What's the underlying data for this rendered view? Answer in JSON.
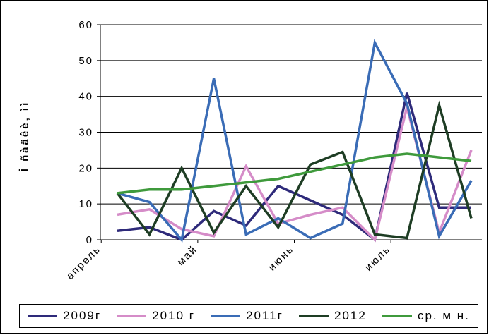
{
  "chart_data": {
    "type": "line",
    "ylabel": "Î ñàäêè, ìì",
    "xlabel": "",
    "ylim": [
      0,
      60
    ],
    "yticks": [
      0,
      10,
      20,
      30,
      40,
      50,
      60
    ],
    "x_tick_labels": [
      {
        "label": "апрель",
        "index": -0.5
      },
      {
        "label": "май",
        "index": 2.5
      },
      {
        "label": "июнь",
        "index": 5.5
      },
      {
        "label": "июль",
        "index": 8.5
      }
    ],
    "grid": "horizontal",
    "legend_position": "bottom",
    "series": [
      {
        "name": "2009г",
        "color": "#2e2a7a",
        "values": [
          2.5,
          3.5,
          0,
          8,
          4,
          15,
          11,
          7,
          0,
          41,
          9,
          9
        ]
      },
      {
        "name": "2010 г",
        "color": "#d58cc8",
        "values": [
          7,
          8.5,
          3,
          1,
          20.5,
          4.5,
          7,
          9,
          0,
          37,
          2,
          25
        ]
      },
      {
        "name": "2011г",
        "color": "#3a6cb6",
        "values": [
          13,
          10.5,
          0,
          45,
          1.5,
          6,
          0.5,
          4.5,
          55,
          38,
          1,
          16.5
        ]
      },
      {
        "name": "2012",
        "color": "#1e3d24",
        "values": [
          13,
          1.5,
          20,
          2,
          15,
          3.5,
          21,
          24.5,
          1.5,
          0.5,
          37.5,
          6
        ]
      },
      {
        "name": "ср. м н.",
        "color": "#3f9a3c",
        "values": [
          13,
          14,
          14,
          15,
          16,
          17,
          19,
          21,
          23,
          24,
          23,
          22
        ]
      }
    ]
  }
}
